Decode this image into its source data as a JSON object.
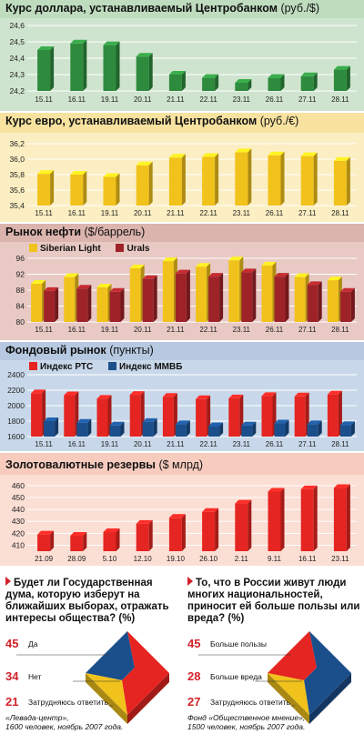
{
  "charts": [
    {
      "title": "Курс доллара, устанавливаемый Центробанком",
      "unit": "(руб./$)",
      "chart_data": {
        "type": "bar",
        "categories": [
          "15.11",
          "16.11",
          "19.11",
          "20.11",
          "21.11",
          "22.11",
          "23.11",
          "26.11",
          "27.11",
          "28.11"
        ],
        "series": [
          {
            "values": [
              24.45,
              24.49,
              24.48,
              24.41,
              24.3,
              24.28,
              24.25,
              24.28,
              24.29,
              24.33
            ]
          }
        ],
        "yticks": [
          24.2,
          24.3,
          24.4,
          24.5,
          24.6
        ],
        "ylim": [
          24.2,
          24.6
        ],
        "colors": {
          "bar": "#2e8b3d",
          "bar_light": "#7fc77d",
          "bg": "#cfe4cf",
          "header": "#bfdcbf"
        }
      }
    },
    {
      "title": "Курс евро, устанавливаемый Центробанком",
      "unit": "(руб./€)",
      "chart_data": {
        "type": "bar",
        "categories": [
          "15.11",
          "16.11",
          "19.11",
          "20.11",
          "21.11",
          "22.11",
          "23.11",
          "26.11",
          "27.11",
          "28.11"
        ],
        "series": [
          {
            "values": [
              35.81,
              35.8,
              35.77,
              35.92,
              36.02,
              36.03,
              36.09,
              36.05,
              36.04,
              35.98
            ]
          }
        ],
        "yticks": [
          35.4,
          35.6,
          35.8,
          36.0,
          36.2
        ],
        "ylim": [
          35.4,
          36.2
        ],
        "colors": {
          "bar": "#f1c21b",
          "bar_light": "#f9e27a",
          "bg": "#fbeec2",
          "header": "#f7e2a0"
        }
      }
    },
    {
      "title": "Рынок нефти",
      "unit": "($/баррель)",
      "chart_data": {
        "type": "bar",
        "categories": [
          "15.11",
          "16.11",
          "19.11",
          "20.11",
          "21.11",
          "22.11",
          "23.11",
          "26.11",
          "27.11",
          "28.11"
        ],
        "series": [
          {
            "name": "Siberian Light",
            "values": [
              89.6,
              91.3,
              88.7,
              93.5,
              95.3,
              93.9,
              95.5,
              94.2,
              91.3,
              90.5
            ]
          },
          {
            "name": "Urals",
            "values": [
              87.8,
              88.4,
              87.6,
              90.8,
              92.2,
              91.4,
              92.5,
              91.4,
              89.3,
              87.6
            ]
          }
        ],
        "yticks": [
          80,
          84,
          88,
          92,
          96
        ],
        "ylim": [
          80,
          96
        ],
        "colors": {
          "s0": "#f1c21b",
          "s1": "#9e2328",
          "bg": "#e8c9c4",
          "header": "#dcb4ae"
        }
      }
    },
    {
      "title": "Фондовый рынок",
      "unit": "(пункты)",
      "chart_data": {
        "type": "bar",
        "categories": [
          "15.11",
          "16.11",
          "19.11",
          "20.11",
          "21.11",
          "22.11",
          "23.11",
          "26.11",
          "27.11",
          "28.11"
        ],
        "series": [
          {
            "name": "Индекс РТС",
            "values": [
              2160,
              2135,
              2090,
              2140,
              2115,
              2085,
              2095,
              2125,
              2120,
              2145
            ]
          },
          {
            "name": "Индекс ММВБ",
            "values": [
              1800,
              1780,
              1745,
              1790,
              1760,
              1735,
              1745,
              1770,
              1760,
              1750
            ]
          }
        ],
        "yticks": [
          1600,
          1800,
          2000,
          2200,
          2400
        ],
        "ylim": [
          1600,
          2400
        ],
        "colors": {
          "s0": "#e52521",
          "s1": "#1b4f8c",
          "bg": "#c8d8ea",
          "header": "#b6c9e0"
        }
      }
    },
    {
      "title": "Золотовалютные резервы",
      "unit": "($ млрд)",
      "chart_data": {
        "type": "bar",
        "categories": [
          "21.09",
          "28.09",
          "5.10",
          "12.10",
          "19.10",
          "26.10",
          "2.11",
          "9.11",
          "16.11",
          "23.11"
        ],
        "series": [
          {
            "values": [
              419,
              418,
              421,
              428,
              433,
              438,
              445,
              455,
              457,
              458
            ]
          }
        ],
        "yticks": [
          410,
          420,
          430,
          440,
          450,
          460
        ],
        "ylim": [
          405,
          463
        ],
        "colors": {
          "bar": "#e52521",
          "bar_light": "#f4967f",
          "bg": "#fbded4",
          "header": "#f7ccbe"
        }
      }
    }
  ],
  "polls": [
    {
      "question": "Будет ли Государственная дума, которую изберут на ближайших выборах, отражать интересы общества? (%)",
      "answers": [
        {
          "pct": "45",
          "label": "Да"
        },
        {
          "pct": "34",
          "label": "Нет"
        },
        {
          "pct": "21",
          "label": "Затрудняюсь ответить"
        }
      ],
      "source_line1": "«Левада-центр»,",
      "source_line2": "1600 человек, ноябрь 2007 года.",
      "colors": [
        "#1b4f8c",
        "#e52521",
        "#f1c21b"
      ]
    },
    {
      "question": "То, что в России живут люди многих национальностей, приносит ей больше пользы или вреда? (%)",
      "answers": [
        {
          "pct": "45",
          "label": "Больше пользы"
        },
        {
          "pct": "28",
          "label": "Больше вреда"
        },
        {
          "pct": "27",
          "label": "Затрудняюсь ответить"
        }
      ],
      "source_line1": "Фонд «Общественное мнение»,",
      "source_line2": "1500 человек, ноябрь 2007 года.",
      "colors": [
        "#e52521",
        "#1b4f8c",
        "#f1c21b"
      ]
    }
  ]
}
